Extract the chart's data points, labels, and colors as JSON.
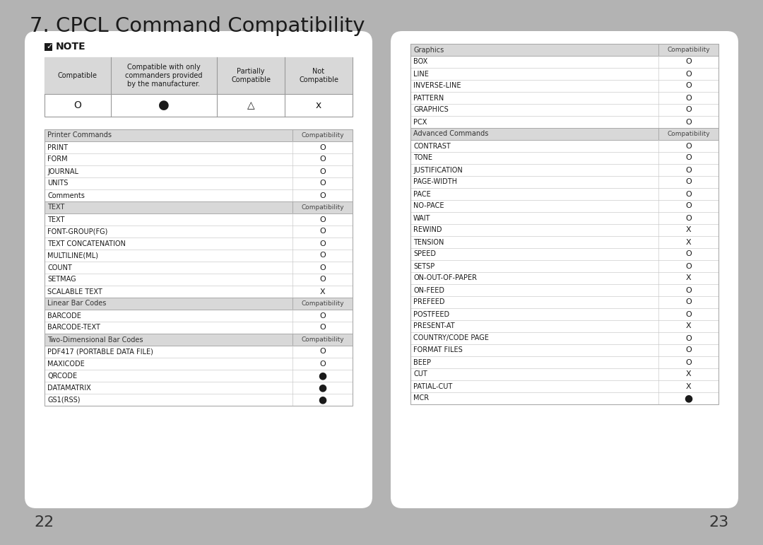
{
  "title": "7. CPCL Command Compatibility",
  "bg_color": "#b3b3b3",
  "panel_color": "#ffffff",
  "header_bg": "#d0d0d0",
  "left_table_sections": [
    {
      "header": "Printer Commands",
      "header_col2": "Compatibility",
      "rows": [
        [
          "PRINT",
          "O"
        ],
        [
          "FORM",
          "O"
        ],
        [
          "JOURNAL",
          "O"
        ],
        [
          "UNITS",
          "O"
        ],
        [
          "Comments",
          "O"
        ]
      ]
    },
    {
      "header": "TEXT",
      "header_col2": "Compatibility",
      "rows": [
        [
          "TEXT",
          "O"
        ],
        [
          "FONT-GROUP(FG)",
          "O"
        ],
        [
          "TEXT CONCATENATION",
          "O"
        ],
        [
          "MULTILINE(ML)",
          "O"
        ],
        [
          "COUNT",
          "O"
        ],
        [
          "SETMAG",
          "O"
        ],
        [
          "SCALABLE TEXT",
          "X"
        ]
      ]
    },
    {
      "header": "Linear Bar Codes",
      "header_col2": "Compatibility",
      "rows": [
        [
          "BARCODE",
          "O"
        ],
        [
          "BARCODE-TEXT",
          "O"
        ]
      ]
    },
    {
      "header": "Two-Dimensional Bar Codes",
      "header_col2": "Compatibility",
      "rows": [
        [
          "PDF417 (PORTABLE DATA FILE)",
          "O"
        ],
        [
          "MAXICODE",
          "O"
        ],
        [
          "QRCODE",
          "●"
        ],
        [
          "DATAMATRIX",
          "●"
        ],
        [
          "GS1(RSS)",
          "●"
        ]
      ]
    }
  ],
  "right_table_sections": [
    {
      "header": "Graphics",
      "header_col2": "Compatibility",
      "rows": [
        [
          "BOX",
          "O"
        ],
        [
          "LINE",
          "O"
        ],
        [
          "INVERSE-LINE",
          "O"
        ],
        [
          "PATTERN",
          "O"
        ],
        [
          "GRAPHICS",
          "O"
        ],
        [
          "PCX",
          "O"
        ]
      ]
    },
    {
      "header": "Advanced Commands",
      "header_col2": "Compatibility",
      "rows": [
        [
          "CONTRAST",
          "O"
        ],
        [
          "TONE",
          "O"
        ],
        [
          "JUSTIFICATION",
          "O"
        ],
        [
          "PAGE-WIDTH",
          "O"
        ],
        [
          "PACE",
          "O"
        ],
        [
          "NO-PACE",
          "O"
        ],
        [
          "WAIT",
          "O"
        ],
        [
          "REWIND",
          "X"
        ],
        [
          "TENSION",
          "X"
        ],
        [
          "SPEED",
          "O"
        ],
        [
          "SETSP",
          "O"
        ],
        [
          "ON-OUT-OF-PAPER",
          "X"
        ],
        [
          "ON-FEED",
          "O"
        ],
        [
          "PREFEED",
          "O"
        ],
        [
          "POSTFEED",
          "O"
        ],
        [
          "PRESENT-AT",
          "X"
        ],
        [
          "COUNTRY/CODE PAGE",
          "O"
        ],
        [
          "FORMAT FILES",
          "O"
        ],
        [
          "BEEP",
          "O"
        ],
        [
          "CUT",
          "X"
        ],
        [
          "PATIAL-CUT",
          "X"
        ],
        [
          "MCR",
          "●"
        ]
      ]
    }
  ],
  "page_numbers": [
    "22",
    "23"
  ]
}
